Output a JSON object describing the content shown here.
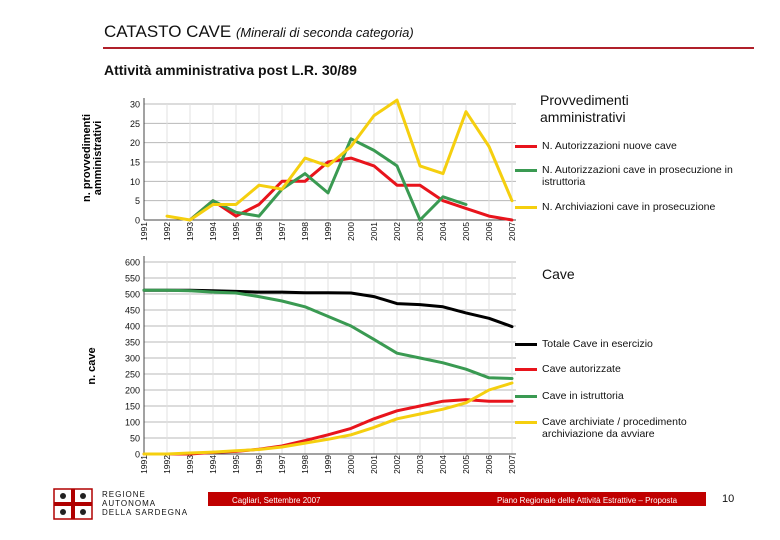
{
  "header": {
    "title": "CATASTO CAVE",
    "title_sub": "(Minerali di seconda categoria)",
    "subtitle": "Attività amministrativa post L.R. 30/89"
  },
  "chart_data": [
    {
      "type": "line",
      "title": "Provvedimenti amministrativi",
      "ylabel": "n. provvedimenti amministrativi",
      "xlabel": "",
      "ylim": [
        0,
        30
      ],
      "yticks": [
        0,
        5,
        10,
        15,
        20,
        25,
        30
      ],
      "x": [
        "1991",
        "1992",
        "1993",
        "1994",
        "1995",
        "1996",
        "1997",
        "1998",
        "1999",
        "2000",
        "2001",
        "2002",
        "2003",
        "2004",
        "2005",
        "2006",
        "2007"
      ],
      "legend_position": "right",
      "grid": true,
      "series": [
        {
          "name": "N. Autorizzazioni nuove cave",
          "color": "#e8141c",
          "values": [
            null,
            null,
            0,
            5,
            1,
            4,
            10,
            10,
            15,
            16,
            14,
            9,
            9,
            5,
            3,
            1,
            0
          ]
        },
        {
          "name": "N. Autorizzazioni cave in prosecuzione in istruttoria",
          "color": "#3a9a52",
          "values": [
            null,
            null,
            0,
            5,
            2,
            1,
            8,
            12,
            7,
            21,
            18,
            14,
            0,
            6,
            4,
            null,
            null
          ]
        },
        {
          "name": "N. Archiviazioni cave in prosecuzione",
          "color": "#f5cf0f",
          "values": [
            null,
            1,
            0,
            4,
            4,
            9,
            8,
            16,
            14,
            19,
            27,
            31,
            14,
            12,
            28,
            19,
            5
          ]
        }
      ]
    },
    {
      "type": "line",
      "title": "Cave",
      "ylabel": "n. cave",
      "xlabel": "",
      "ylim": [
        0,
        600
      ],
      "yticks": [
        0,
        50,
        100,
        150,
        200,
        250,
        300,
        350,
        400,
        450,
        500,
        550,
        600
      ],
      "x": [
        "1991",
        "1992",
        "1993",
        "1994",
        "1995",
        "1996",
        "1997",
        "1998",
        "1999",
        "2000",
        "2001",
        "2002",
        "2003",
        "2004",
        "2005",
        "2006",
        "2007"
      ],
      "legend_position": "right",
      "grid": true,
      "series": [
        {
          "name": "Totale Cave in esercizio",
          "color": "#000000",
          "values": [
            512,
            512,
            512,
            510,
            508,
            506,
            506,
            504,
            504,
            503,
            492,
            470,
            467,
            460,
            441,
            424,
            398
          ]
        },
        {
          "name": "Cave autorizzate",
          "color": "#e8141c",
          "values": [
            0,
            0,
            0,
            5,
            8,
            15,
            25,
            42,
            60,
            80,
            110,
            135,
            150,
            165,
            170,
            165,
            165
          ]
        },
        {
          "name": "Cave in istruttoria",
          "color": "#3a9a52",
          "values": [
            512,
            512,
            510,
            506,
            503,
            492,
            478,
            460,
            430,
            400,
            358,
            315,
            300,
            285,
            265,
            238,
            236
          ]
        },
        {
          "name": "Cave archiviate / procedimento archiviazione da avviare",
          "color": "#f5cf0f",
          "values": [
            0,
            0,
            3,
            6,
            10,
            14,
            22,
            34,
            46,
            60,
            83,
            110,
            125,
            140,
            160,
            200,
            222
          ]
        }
      ]
    }
  ],
  "footer": {
    "logo_text": "REGIONE AUTONOMA DELLA SARDEGNA",
    "logo_line1": "REGIONE",
    "logo_line2": "AUTONOMA",
    "logo_line3": "DELLA SARDEGNA",
    "date": "Cagliari, Settembre 2007",
    "plan": "Piano Regionale delle Attività Estrattive – Proposta",
    "page": "10"
  }
}
